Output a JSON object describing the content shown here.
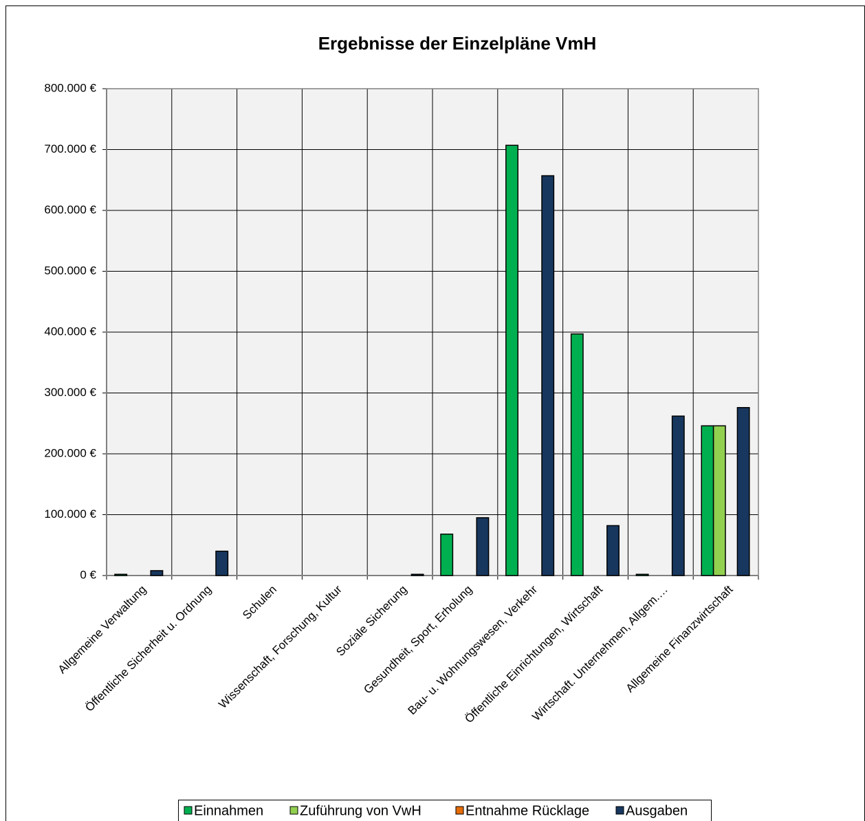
{
  "chart_data": {
    "type": "bar",
    "title": "Ergebnisse der Einzelpläne VmH",
    "categories": [
      "Allgemeine Verwaltung",
      "Öffentliche Sicherheit u. Ordnung",
      "Schulen",
      "Wissenschaft, Forschung, Kultur",
      "Soziale Sicherung",
      "Gesundheit, Sport, Erholung",
      "Bau- u. Wohnungswesen, Verkehr",
      "Öffentliche Einrichtungen, Wirtschaft",
      "Wirtschaft. Unternehmen, Allgem.…",
      "Allgemeine Finanzwirtschaft"
    ],
    "series": [
      {
        "name": "Einnahmen",
        "color": "#00b050",
        "values": [
          2000,
          0,
          0,
          0,
          0,
          68000,
          707000,
          397000,
          2000,
          246000
        ]
      },
      {
        "name": "Zuführung von VwH",
        "color": "#92d050",
        "values": [
          0,
          0,
          0,
          0,
          0,
          0,
          0,
          0,
          0,
          246000
        ]
      },
      {
        "name": "Entnahme Rücklage",
        "color": "#e46c0a",
        "values": [
          0,
          0,
          0,
          0,
          0,
          0,
          0,
          0,
          0,
          0
        ]
      },
      {
        "name": "Ausgaben",
        "color": "#17375e",
        "values": [
          8000,
          40000,
          0,
          0,
          2000,
          95000,
          657000,
          82000,
          262000,
          276000
        ]
      }
    ],
    "ylim": [
      0,
      800000
    ],
    "yticks": [
      {
        "value": 0,
        "label": "0 €"
      },
      {
        "value": 100000,
        "label": "100.000 €"
      },
      {
        "value": 200000,
        "label": "200.000 €"
      },
      {
        "value": 300000,
        "label": "300.000 €"
      },
      {
        "value": 400000,
        "label": "400.000 €"
      },
      {
        "value": 500000,
        "label": "500.000 €"
      },
      {
        "value": 600000,
        "label": "600.000 €"
      },
      {
        "value": 700000,
        "label": "700.000 €"
      },
      {
        "value": 800000,
        "label": "800.000 €"
      }
    ],
    "grid": true,
    "legend": "bottom"
  }
}
